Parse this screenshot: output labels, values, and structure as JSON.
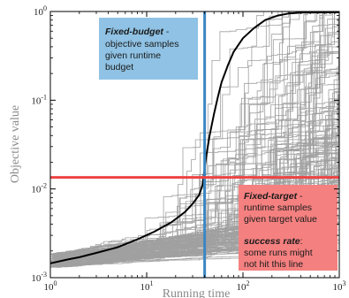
{
  "chart_data": {
    "type": "line",
    "xscale": "log",
    "yscale": "log",
    "xlim": [
      1,
      1000
    ],
    "ylim": [
      0.001,
      1
    ],
    "xlabel": "Running time",
    "ylabel": "Objective value",
    "x_ticks": [
      {
        "value": 1,
        "base": "10",
        "exp": "0"
      },
      {
        "value": 10,
        "base": "10",
        "exp": "1"
      },
      {
        "value": 100,
        "base": "10",
        "exp": "2"
      },
      {
        "value": 1000,
        "base": "10",
        "exp": "3"
      }
    ],
    "y_ticks": [
      {
        "value": 0.001,
        "base": "10",
        "exp": "-3"
      },
      {
        "value": 0.01,
        "base": "10",
        "exp": "-2"
      },
      {
        "value": 0.1,
        "base": "10",
        "exp": "-1"
      },
      {
        "value": 1,
        "base": "10",
        "exp": "0"
      }
    ],
    "fixed_budget_x": 40,
    "fixed_target_y": 0.0135,
    "median_run": {
      "color": "#000000",
      "x": [
        1,
        1.5,
        2,
        3,
        5,
        8,
        12,
        18,
        25,
        30,
        35,
        38,
        40,
        42,
        45,
        50,
        55,
        60,
        70,
        80,
        100,
        130,
        170,
        230,
        300,
        400,
        600,
        1000
      ],
      "y": [
        0.00145,
        0.0016,
        0.0017,
        0.0019,
        0.0022,
        0.0027,
        0.0033,
        0.0042,
        0.0055,
        0.0068,
        0.0085,
        0.011,
        0.017,
        0.025,
        0.04,
        0.07,
        0.11,
        0.16,
        0.25,
        0.35,
        0.5,
        0.65,
        0.8,
        0.9,
        0.95,
        0.97,
        0.98,
        0.98
      ]
    },
    "runs_color": "#a0a0a0",
    "fixed_budget_color": "#3a86c2",
    "fixed_target_color": "#ee4444",
    "fixed_budget_box_color": "#8fc2e4",
    "fixed_target_box_color": "#f58080"
  },
  "fixed_budget_box": {
    "title": "Fixed-budget",
    "dash": " -",
    "lines": [
      "objective samples",
      "given runtime",
      "budget"
    ]
  },
  "fixed_target_box": {
    "title": "Fixed-target",
    "dash": " -",
    "lines": [
      "runtime samples",
      "given target value"
    ],
    "success_title": "success rate",
    "success_colon": ":",
    "success_lines": [
      "some runs might",
      "not hit this line"
    ]
  }
}
